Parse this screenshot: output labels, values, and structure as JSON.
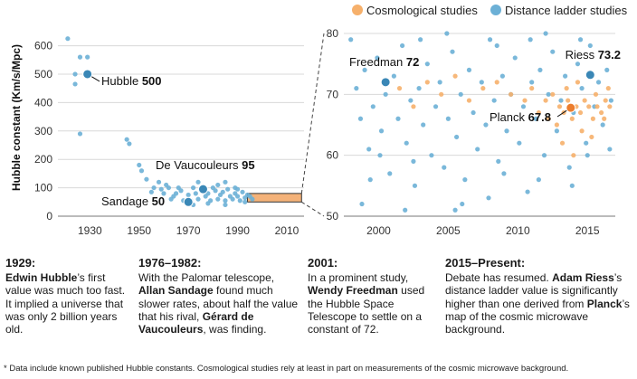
{
  "legend": [
    {
      "name": "Cosmological studies",
      "color": "#f6b06b"
    },
    {
      "name": "Distance ladder studies",
      "color": "#6cb0d6"
    }
  ],
  "colors": {
    "cosmo": "#f6b06b",
    "ladder": "#6cb0d6",
    "marker_blue": "#3a87b6",
    "marker_orange": "#ec7d2d",
    "box_fill": "#f2a461"
  },
  "chart_data": [
    {
      "type": "scatter",
      "ylabel": "Hubble constant (Km/s/Mpc)",
      "xlim": [
        1917,
        2017
      ],
      "ylim": [
        0,
        640
      ],
      "xticks": [
        1930,
        1950,
        1970,
        1990,
        2010
      ],
      "yticks": [
        0,
        100,
        200,
        300,
        400,
        500,
        600
      ],
      "grid": true,
      "highlight_box": {
        "x": [
          1994,
          2016
        ],
        "y": [
          50,
          80
        ]
      },
      "series": [
        {
          "name": "Distance ladder studies",
          "points": [
            [
              1921,
              625
            ],
            [
              1924,
              500
            ],
            [
              1926,
              560
            ],
            [
              1929,
              560
            ],
            [
              1926,
              290
            ],
            [
              1924,
              465
            ],
            [
              1945,
              270
            ],
            [
              1946,
              255
            ],
            [
              1950,
              180
            ],
            [
              1951,
              160
            ],
            [
              1953,
              130
            ],
            [
              1956,
              100
            ],
            [
              1958,
              120
            ],
            [
              1960,
              80
            ],
            [
              1962,
              100
            ],
            [
              1963,
              60
            ],
            [
              1965,
              80
            ],
            [
              1966,
              100
            ],
            [
              1968,
              55
            ],
            [
              1970,
              75
            ],
            [
              1971,
              55
            ],
            [
              1972,
              100
            ],
            [
              1973,
              80
            ],
            [
              1974,
              60
            ],
            [
              1975,
              95
            ],
            [
              1976,
              100
            ],
            [
              1977,
              70
            ],
            [
              1978,
              80
            ],
            [
              1979,
              55
            ],
            [
              1980,
              100
            ],
            [
              1981,
              90
            ],
            [
              1982,
              60
            ],
            [
              1983,
              75
            ],
            [
              1984,
              85
            ],
            [
              1985,
              55
            ],
            [
              1986,
              95
            ],
            [
              1987,
              70
            ],
            [
              1988,
              60
            ],
            [
              1989,
              80
            ],
            [
              1990,
              70
            ],
            [
              1991,
              55
            ],
            [
              1992,
              85
            ],
            [
              1993,
              65
            ],
            [
              1994,
              75
            ],
            [
              1995,
              70
            ],
            [
              1996,
              60
            ],
            [
              1985,
              120
            ],
            [
              1978,
              45
            ],
            [
              1972,
              40
            ],
            [
              1989,
              100
            ],
            [
              1967,
              90
            ],
            [
              1964,
              70
            ],
            [
              1961,
              110
            ],
            [
              1959,
              95
            ],
            [
              1955,
              85
            ],
            [
              1974,
              120
            ],
            [
              1982,
              110
            ],
            [
              1990,
              95
            ],
            [
              1993,
              50
            ],
            [
              1985,
              40
            ]
          ]
        }
      ],
      "annotations": [
        {
          "name": "Hubble",
          "value": "500",
          "x": 1929,
          "y": 500
        },
        {
          "name": "De Vaucouleurs",
          "value": "95",
          "x": 1976,
          "y": 95
        },
        {
          "name": "Sandage",
          "value": "50",
          "x": 1970,
          "y": 50
        }
      ]
    },
    {
      "type": "scatter",
      "xlim": [
        1997.5,
        2017
      ],
      "ylim": [
        50,
        80
      ],
      "xticks": [
        2000,
        2005,
        2010,
        2015
      ],
      "yticks": [
        50,
        60,
        70,
        80
      ],
      "grid": true,
      "series": [
        {
          "name": "Distance ladder studies",
          "points": [
            [
              1998.0,
              79
            ],
            [
              1998.4,
              71
            ],
            [
              1998.7,
              66
            ],
            [
              1999.0,
              74
            ],
            [
              1999.3,
              61
            ],
            [
              1999.6,
              68
            ],
            [
              1999.9,
              76
            ],
            [
              2000.2,
              64
            ],
            [
              2000.5,
              70
            ],
            [
              2000.8,
              57
            ],
            [
              2001.1,
              73
            ],
            [
              2001.4,
              66
            ],
            [
              2001.7,
              78
            ],
            [
              2002.0,
              62
            ],
            [
              2002.3,
              69
            ],
            [
              2002.6,
              55
            ],
            [
              2002.9,
              71
            ],
            [
              2003.2,
              65
            ],
            [
              2003.5,
              75
            ],
            [
              2003.8,
              60
            ],
            [
              2004.1,
              68
            ],
            [
              2004.4,
              72
            ],
            [
              2004.7,
              58
            ],
            [
              2005.0,
              66
            ],
            [
              2005.3,
              77
            ],
            [
              2005.6,
              63
            ],
            [
              2005.9,
              70
            ],
            [
              2006.2,
              56
            ],
            [
              2006.5,
              74
            ],
            [
              2006.8,
              67
            ],
            [
              2007.1,
              61
            ],
            [
              2007.4,
              72
            ],
            [
              2007.7,
              65
            ],
            [
              2008.0,
              79
            ],
            [
              2008.3,
              69
            ],
            [
              2008.6,
              59
            ],
            [
              2008.9,
              73
            ],
            [
              2009.2,
              64
            ],
            [
              2009.5,
              70
            ],
            [
              2009.8,
              76
            ],
            [
              2010.1,
              62
            ],
            [
              2010.4,
              68
            ],
            [
              2010.7,
              54
            ],
            [
              2011.0,
              72
            ],
            [
              2011.3,
              66
            ],
            [
              2011.6,
              74
            ],
            [
              2011.9,
              60
            ],
            [
              2012.2,
              70
            ],
            [
              2012.5,
              77
            ],
            [
              2012.8,
              64
            ],
            [
              2013.1,
              69
            ],
            [
              2013.4,
              73
            ],
            [
              2013.7,
              58
            ],
            [
              2014.0,
              67
            ],
            [
              2014.3,
              75
            ],
            [
              2014.6,
              71
            ],
            [
              2014.9,
              62
            ],
            [
              2015.2,
              78
            ],
            [
              2015.5,
              68
            ],
            [
              2015.8,
              72
            ],
            [
              2016.1,
              65
            ],
            [
              2016.4,
              74
            ],
            [
              2016.7,
              69
            ],
            [
              1998.8,
              52
            ],
            [
              2001.9,
              51
            ],
            [
              2004.9,
              80
            ],
            [
              2007.9,
              53
            ],
            [
              2010.9,
              79
            ],
            [
              2013.9,
              55
            ],
            [
              2000.1,
              60
            ],
            [
              2003.0,
              79
            ],
            [
              2006.0,
              52
            ],
            [
              2009.0,
              57
            ],
            [
              2012.0,
              80
            ],
            [
              2015.0,
              60
            ],
            [
              1999.4,
              56
            ],
            [
              2002.5,
              59
            ],
            [
              2005.5,
              51
            ],
            [
              2008.5,
              78
            ],
            [
              2011.5,
              56
            ],
            [
              2014.5,
              79
            ],
            [
              2016.6,
              61
            ]
          ]
        },
        {
          "name": "Cosmological studies",
          "points": [
            [
              2001.5,
              71
            ],
            [
              2002.5,
              68
            ],
            [
              2003.5,
              72
            ],
            [
              2004.5,
              70
            ],
            [
              2005.5,
              73
            ],
            [
              2006.5,
              69
            ],
            [
              2007.5,
              71
            ],
            [
              2008.5,
              72
            ],
            [
              2009.5,
              70
            ],
            [
              2010.5,
              69
            ],
            [
              2011.0,
              71
            ],
            [
              2011.5,
              67
            ],
            [
              2012.0,
              69
            ],
            [
              2012.5,
              70
            ],
            [
              2013.0,
              68
            ],
            [
              2013.3,
              67
            ],
            [
              2013.6,
              69
            ],
            [
              2013.9,
              66
            ],
            [
              2014.2,
              68
            ],
            [
              2014.5,
              67
            ],
            [
              2014.8,
              69
            ],
            [
              2015.1,
              68
            ],
            [
              2015.4,
              66
            ],
            [
              2015.7,
              68
            ],
            [
              2016.0,
              67
            ],
            [
              2016.3,
              69
            ],
            [
              2016.6,
              68
            ],
            [
              2013.2,
              62
            ],
            [
              2014.0,
              60
            ],
            [
              2014.6,
              64
            ],
            [
              2015.3,
              63
            ],
            [
              2012.8,
              65
            ],
            [
              2016.2,
              66
            ],
            [
              2013.5,
              71
            ],
            [
              2014.3,
              72
            ],
            [
              2015.6,
              70
            ],
            [
              2012.2,
              66
            ],
            [
              2016.5,
              71
            ]
          ]
        }
      ],
      "annotations": [
        {
          "name": "Freedman",
          "value": "72",
          "x": 2000.5,
          "y": 72
        },
        {
          "name": "Riess",
          "value": "73.2",
          "x": 2015.2,
          "y": 73.2
        },
        {
          "name": "Planck",
          "value": "67.8",
          "x": 2013.8,
          "y": 67.8
        }
      ]
    }
  ],
  "columns": [
    {
      "year": "1929:",
      "parts": [
        {
          "b": true,
          "t": "Edwin Hubble"
        },
        {
          "b": false,
          "t": "’s first value was much too fast. It implied a universe that was only 2 billion years old."
        }
      ]
    },
    {
      "year": "1976–1982:",
      "parts": [
        {
          "b": false,
          "t": "With the Palomar telescope, "
        },
        {
          "b": true,
          "t": "Allan Sandage"
        },
        {
          "b": false,
          "t": " found much slower rates, about half the value that his rival, "
        },
        {
          "b": true,
          "t": "Gérard de Vaucouleurs"
        },
        {
          "b": false,
          "t": ", was finding."
        }
      ]
    },
    {
      "year": "2001:",
      "parts": [
        {
          "b": false,
          "t": "In a prominent study, "
        },
        {
          "b": true,
          "t": "Wendy Freedman"
        },
        {
          "b": false,
          "t": " used the Hubble Space Telescope to settle on a constant of 72."
        }
      ]
    },
    {
      "year": "2015–Present:",
      "parts": [
        {
          "b": false,
          "t": "Debate has resumed. "
        },
        {
          "b": true,
          "t": "Adam Riess"
        },
        {
          "b": false,
          "t": "’s distance ladder value is significantly higher than one derived from "
        },
        {
          "b": true,
          "t": "Planck"
        },
        {
          "b": false,
          "t": "’s map of the cosmic microwave background."
        }
      ]
    }
  ],
  "footnote": "* Data include known published Hubble constants. Cosmological studies rely at least in part on measurements of the cosmic microwave background."
}
